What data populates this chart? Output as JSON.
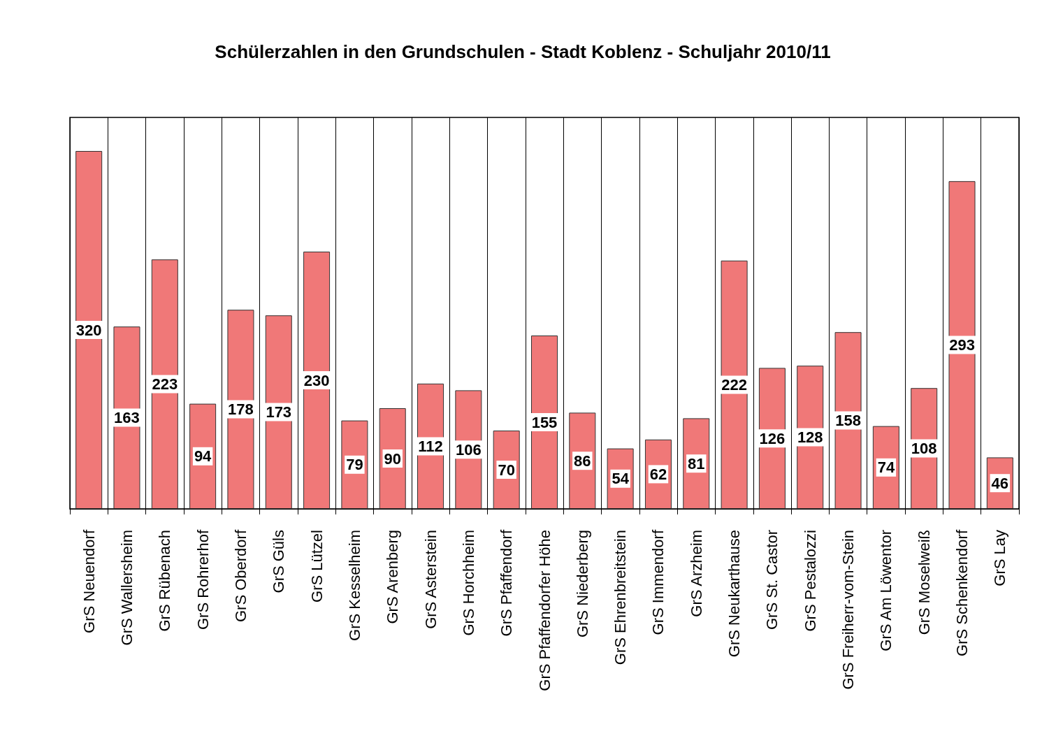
{
  "chart_data": {
    "type": "bar",
    "title": "Schülerzahlen in den Grundschulen - Stadt Koblenz - Schuljahr 2010/11",
    "categories": [
      "GrS Neuendorf",
      "GrS Wallersheim",
      "GrS Rübenach",
      "GrS Rohrerhof",
      "GrS Oberdorf",
      "GrS Güls",
      "GrS Lützel",
      "GrS Kesselheim",
      "GrS Arenberg",
      "GrS Asterstein",
      "GrS Horchheim",
      "GrS Pfaffendorf",
      "GrS Pfaffendorfer Höhe",
      "GrS Niederberg",
      "GrS Ehrenbreitstein",
      "GrS Immendorf",
      "GrS Arzheim",
      "GrS Neukarthause",
      "GrS St. Castor",
      "GrS Pestalozzi",
      "GrS Freiherr-vom-Stein",
      "GrS Am Löwentor",
      "GrS Moselweiß",
      "GrS Schenkendorf",
      "GrS Lay"
    ],
    "values": [
      320,
      163,
      223,
      94,
      178,
      173,
      230,
      79,
      90,
      112,
      106,
      70,
      155,
      86,
      54,
      62,
      81,
      222,
      126,
      128,
      158,
      74,
      108,
      293,
      46
    ],
    "color": "#f07878",
    "data_labels": true,
    "grid": "x"
  }
}
